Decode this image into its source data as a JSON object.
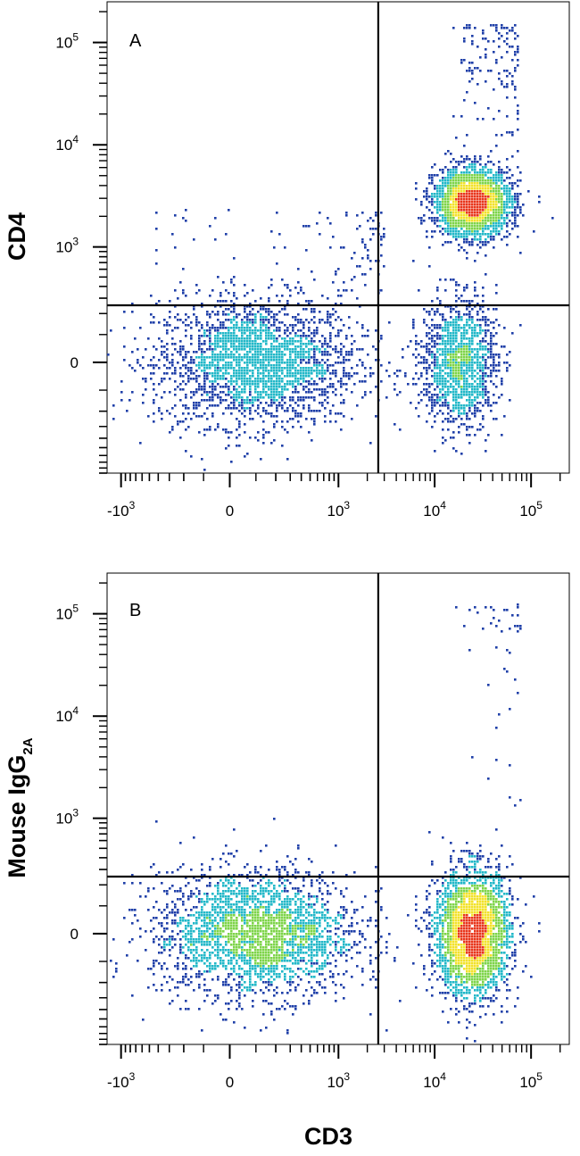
{
  "chart_data": [
    {
      "type": "scatter",
      "panel_label": "A",
      "xlabel": "CD3",
      "ylabel": "CD4",
      "x_ticks": [
        {
          "value": -1000,
          "base": "-10",
          "exp": "3"
        },
        {
          "value": 0,
          "base": "0",
          "exp": ""
        },
        {
          "value": 1000,
          "base": "10",
          "exp": "3"
        },
        {
          "value": 10000,
          "base": "10",
          "exp": "4"
        },
        {
          "value": 100000,
          "base": "10",
          "exp": "5"
        }
      ],
      "y_ticks": [
        {
          "value": 0,
          "base": "0",
          "exp": ""
        },
        {
          "value": 1000,
          "base": "10",
          "exp": "3"
        },
        {
          "value": 10000,
          "base": "10",
          "exp": "4"
        },
        {
          "value": 100000,
          "base": "10",
          "exp": "5"
        }
      ],
      "gate": {
        "x": 2600,
        "y": 250
      },
      "populations": [
        {
          "name": "CD3- CD4-",
          "x_center": 100,
          "y_center": 0,
          "density": "high"
        },
        {
          "name": "CD3+ CD4+",
          "x_center": 25000,
          "y_center": 2700,
          "density": "high"
        },
        {
          "name": "CD3+ CD4-",
          "x_center": 18000,
          "y_center": 0,
          "density": "medium"
        }
      ],
      "scale": "biexponential",
      "grid": false
    },
    {
      "type": "scatter",
      "panel_label": "B",
      "xlabel": "CD3",
      "ylabel": "Mouse IgG",
      "ylabel_subscript": "2A",
      "x_ticks": [
        {
          "value": -1000,
          "base": "-10",
          "exp": "3"
        },
        {
          "value": 0,
          "base": "0",
          "exp": ""
        },
        {
          "value": 1000,
          "base": "10",
          "exp": "3"
        },
        {
          "value": 10000,
          "base": "10",
          "exp": "4"
        },
        {
          "value": 100000,
          "base": "10",
          "exp": "5"
        }
      ],
      "y_ticks": [
        {
          "value": 0,
          "base": "0",
          "exp": ""
        },
        {
          "value": 1000,
          "base": "10",
          "exp": "3"
        },
        {
          "value": 10000,
          "base": "10",
          "exp": "4"
        },
        {
          "value": 100000,
          "base": "10",
          "exp": "5"
        }
      ],
      "gate": {
        "x": 2600,
        "y": 250
      },
      "populations": [
        {
          "name": "CD3- negative",
          "x_center": 100,
          "y_center": 0,
          "density": "high"
        },
        {
          "name": "CD3+ negative",
          "x_center": 25000,
          "y_center": 0,
          "density": "high"
        }
      ],
      "scale": "biexponential",
      "grid": false
    }
  ],
  "colors": {
    "density_low": "#1f3fa8",
    "density_mid": "#22b8c8",
    "density_midhigh": "#7ed44a",
    "density_high": "#f2e22a",
    "density_peak": "#e8361c",
    "axes": "#000000",
    "gate": "#000000"
  }
}
